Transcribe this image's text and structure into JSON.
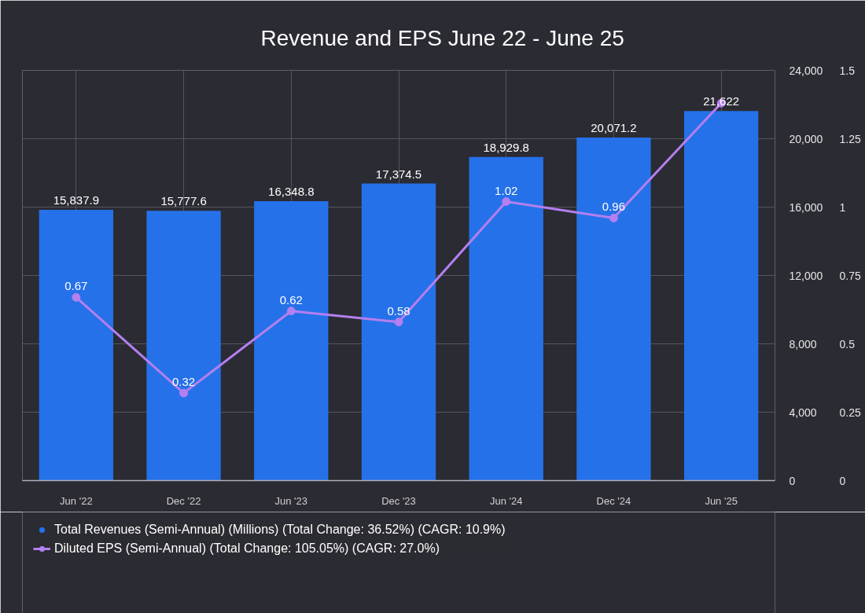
{
  "chart_data": {
    "type": "bar",
    "title": "Revenue and EPS June 22 - June 25",
    "categories": [
      "Jun '22",
      "Dec '22",
      "Jun '23",
      "Dec '23",
      "Jun '24",
      "Dec '24",
      "Jun '25"
    ],
    "series": [
      {
        "name": "Total Revenues (Semi-Annual) (Millions) (Total Change: 36.52%) (CAGR: 10.9%)",
        "color": "#2571e9",
        "values": [
          15837.9,
          15777.6,
          16348.8,
          17374.5,
          18929.8,
          20071.2,
          21622
        ],
        "value_labels": [
          "15,837.9",
          "15,777.6",
          "16,348.8",
          "17,374.5",
          "18,929.8",
          "20,071.2",
          "21,622"
        ]
      },
      {
        "name": "Diluted EPS (Semi-Annual) (Total Change: 105.05%) (CAGR: 27.0%)",
        "type": "line",
        "axis": "y2",
        "color": "#b47ff0",
        "marker": "circle",
        "line_style": "solid",
        "values": [
          0.67,
          0.32,
          0.62,
          0.58,
          1.02,
          0.96,
          1.38
        ],
        "value_labels": [
          "0.67",
          "0.32",
          "0.62",
          "0.58",
          "1.02",
          "0.96",
          null
        ]
      }
    ],
    "ylim": [
      0,
      24000
    ],
    "yticks": [
      0,
      {
        "value": 4000,
        "label": "4,000"
      },
      {
        "value": 8000,
        "label": "8,000"
      },
      {
        "value": 12000,
        "label": "12,000"
      },
      {
        "value": 16000,
        "label": "16,000"
      },
      {
        "value": 20000,
        "label": "20,000"
      },
      {
        "value": 24000,
        "label": "24,000"
      }
    ],
    "y2lim": [
      0,
      1.5
    ],
    "y2ticks": [
      0,
      0.25,
      0.5,
      0.75,
      1,
      1.25,
      1.5
    ],
    "grid": true,
    "legend": "bottom"
  }
}
